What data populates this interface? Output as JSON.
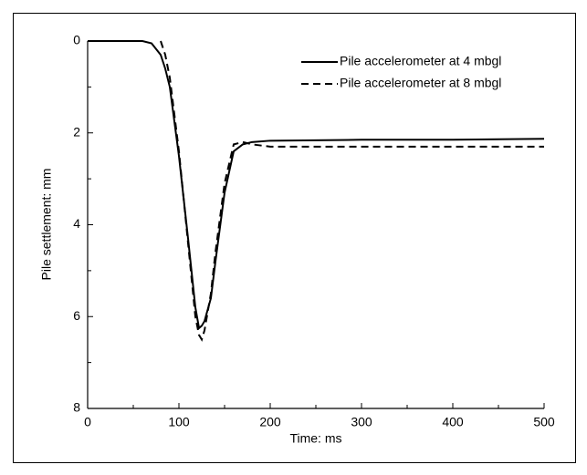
{
  "chart_data": {
    "type": "line",
    "xlabel": "Time: ms",
    "ylabel": "Pile settlement: mm",
    "x": [
      0,
      60,
      70,
      80,
      85,
      90,
      100,
      110,
      118,
      122,
      125,
      128,
      135,
      140,
      150,
      160,
      170,
      180,
      200,
      300,
      400,
      500
    ],
    "series": [
      {
        "name": "Pile accelerometer at 4 mbgl",
        "color": "#000000",
        "dash": "solid",
        "values": [
          0,
          0,
          0.05,
          0.3,
          0.6,
          1.0,
          2.5,
          4.3,
          5.8,
          6.25,
          6.2,
          6.1,
          5.6,
          4.8,
          3.3,
          2.4,
          2.25,
          2.2,
          2.17,
          2.15,
          2.15,
          2.13
        ]
      },
      {
        "name": "Pile accelerometer at 8 mbgl",
        "color": "#000000",
        "dash": "dashed",
        "values": [
          null,
          null,
          null,
          0,
          0.3,
          0.8,
          2.4,
          4.4,
          6.0,
          6.4,
          6.5,
          6.3,
          5.5,
          4.6,
          3.1,
          2.25,
          2.2,
          2.25,
          2.3,
          2.3,
          2.3,
          2.3
        ]
      }
    ],
    "xlim": [
      0,
      500
    ],
    "xticks": [
      0,
      100,
      200,
      300,
      400,
      500
    ],
    "x_minor_ticks": [
      50,
      150,
      250,
      350,
      450
    ],
    "ylim": [
      0,
      8
    ],
    "yticks": [
      0,
      2,
      4,
      6,
      8
    ],
    "y_minor_ticks": [
      1,
      3,
      5,
      7
    ],
    "y_inverted": true,
    "grid": false,
    "legend": "upper right"
  }
}
